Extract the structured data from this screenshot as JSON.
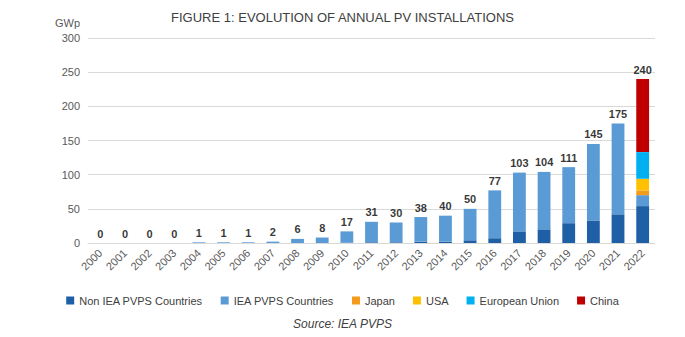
{
  "chart_data": {
    "type": "bar",
    "title": "FIGURE 1: EVOLUTION OF ANNUAL PV INSTALLATIONS",
    "y_label": "GWp",
    "source": "Source: IEA PVPS",
    "categories": [
      "2000",
      "2001",
      "2002",
      "2003",
      "2004",
      "2005",
      "2006",
      "2007",
      "2008",
      "2009",
      "2010",
      "2011",
      "2012",
      "2013",
      "2014",
      "2015",
      "2016",
      "2017",
      "2018",
      "2019",
      "2020",
      "2021",
      "2022"
    ],
    "series": [
      {
        "name": "Non IEA PVPS Countries",
        "color": "#1f5fa6",
        "values": [
          0,
          0,
          0,
          0,
          0,
          0,
          0,
          0,
          0,
          0,
          0.5,
          1,
          1,
          2,
          2,
          4,
          7,
          17,
          20,
          29,
          33,
          42,
          54
        ]
      },
      {
        "name": "IEA PVPS Countries",
        "color": "#5b9bd5",
        "values": [
          0,
          0,
          0,
          0,
          1,
          1,
          1,
          2,
          6,
          8,
          16.5,
          30,
          29,
          36,
          38,
          46,
          70,
          86,
          84,
          82,
          112,
          133,
          16
        ]
      },
      {
        "name": "Japan",
        "color": "#f59a1b",
        "values": [
          null,
          null,
          null,
          null,
          null,
          null,
          null,
          null,
          null,
          null,
          null,
          null,
          null,
          null,
          null,
          null,
          null,
          null,
          null,
          null,
          null,
          null,
          7
        ]
      },
      {
        "name": "USA",
        "color": "#ffc000",
        "values": [
          null,
          null,
          null,
          null,
          null,
          null,
          null,
          null,
          null,
          null,
          null,
          null,
          null,
          null,
          null,
          null,
          null,
          null,
          null,
          null,
          null,
          null,
          17
        ]
      },
      {
        "name": "European Union",
        "color": "#00b0f0",
        "values": [
          null,
          null,
          null,
          null,
          null,
          null,
          null,
          null,
          null,
          null,
          null,
          null,
          null,
          null,
          null,
          null,
          null,
          null,
          null,
          null,
          null,
          null,
          39
        ]
      },
      {
        "name": "China",
        "color": "#c00000",
        "values": [
          null,
          null,
          null,
          null,
          null,
          null,
          null,
          null,
          null,
          null,
          null,
          null,
          null,
          null,
          null,
          null,
          null,
          null,
          null,
          null,
          null,
          null,
          107
        ]
      }
    ],
    "totals": [
      0,
      0,
      0,
      0,
      1,
      1,
      1,
      2,
      6,
      8,
      17,
      31,
      30,
      38,
      40,
      50,
      77,
      103,
      104,
      111,
      145,
      175,
      240
    ],
    "stacked": true,
    "ylim": [
      0,
      300
    ],
    "yticks": [
      0,
      50,
      100,
      150,
      200,
      250,
      300
    ],
    "grid": true,
    "legend": "bottom"
  }
}
